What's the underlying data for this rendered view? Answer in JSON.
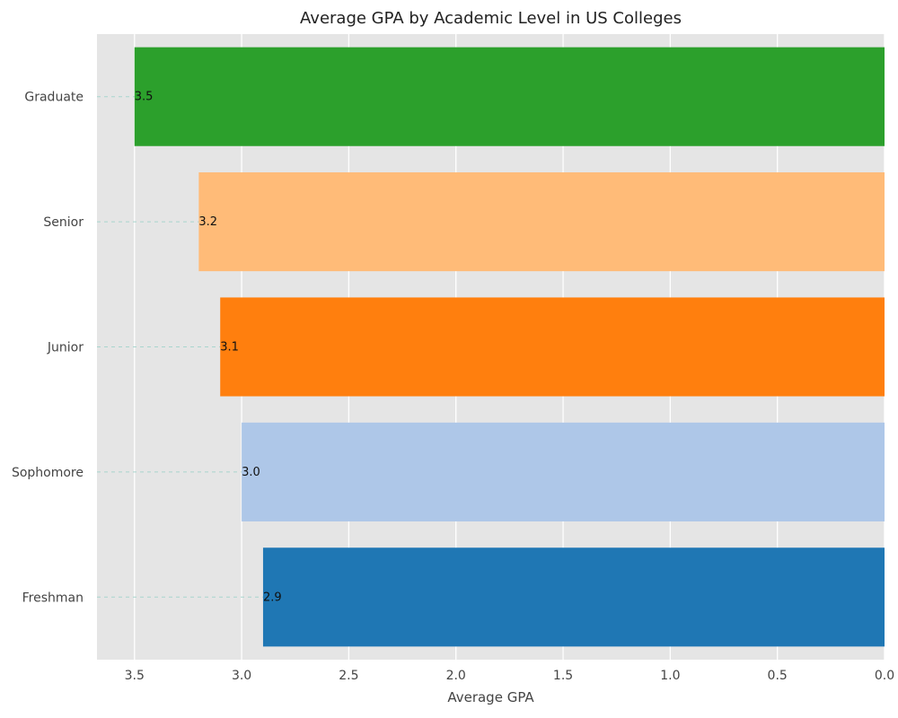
{
  "chart_data": {
    "type": "bar",
    "orientation": "horizontal",
    "title": "Average GPA by Academic Level in US Colleges",
    "xlabel": "Average GPA",
    "ylabel": "",
    "x_axis_inverted": true,
    "xlim": [
      3.675,
      0.0
    ],
    "xticks": [
      "3.5",
      "3.0",
      "2.5",
      "2.0",
      "1.5",
      "1.0",
      "0.5",
      "0.0"
    ],
    "grid": true,
    "categories": [
      "Freshman",
      "Sophomore",
      "Junior",
      "Senior",
      "Graduate"
    ],
    "values": [
      2.9,
      3.0,
      3.1,
      3.2,
      3.5
    ],
    "data_labels": [
      "2.9",
      "3.0",
      "3.1",
      "3.2",
      "3.5"
    ],
    "colors": [
      "#1f77b4",
      "#aec7e8",
      "#ff7f0e",
      "#ffbb78",
      "#2ca02c"
    ],
    "background_color": "#e5e5e5",
    "leader_line_color": "#a8d5ce"
  }
}
